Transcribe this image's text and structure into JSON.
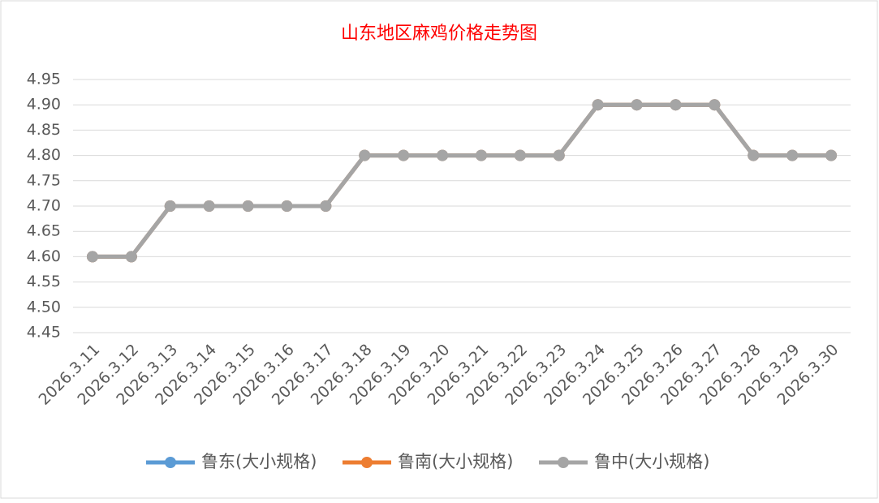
{
  "chart_data": {
    "type": "line",
    "title": "山东地区麻鸡价格走势图",
    "categories": [
      "2026.3.11",
      "2026.3.12",
      "2026.3.13",
      "2026.3.14",
      "2026.3.15",
      "2026.3.16",
      "2026.3.17",
      "2026.3.18",
      "2026.3.19",
      "2026.3.20",
      "2026.3.21",
      "2026.3.22",
      "2026.3.23",
      "2026.3.24",
      "2026.3.25",
      "2026.3.26",
      "2026.3.27",
      "2026.3.28",
      "2026.3.29",
      "2026.3.30"
    ],
    "series": [
      {
        "name": "鲁东(大小规格)",
        "color": "#5b9bd5",
        "values": [
          4.6,
          4.6,
          4.7,
          4.7,
          4.7,
          4.7,
          4.7,
          4.8,
          4.8,
          4.8,
          4.8,
          4.8,
          4.8,
          4.9,
          4.9,
          4.9,
          4.9,
          4.8,
          4.8,
          4.8
        ]
      },
      {
        "name": "鲁南(大小规格)",
        "color": "#ed7d31",
        "values": [
          4.6,
          4.6,
          4.7,
          4.7,
          4.7,
          4.7,
          4.7,
          4.8,
          4.8,
          4.8,
          4.8,
          4.8,
          4.8,
          4.9,
          4.9,
          4.9,
          4.9,
          4.8,
          4.8,
          4.8
        ]
      },
      {
        "name": "鲁中(大小规格)",
        "color": "#a5a5a5",
        "values": [
          4.6,
          4.6,
          4.7,
          4.7,
          4.7,
          4.7,
          4.7,
          4.8,
          4.8,
          4.8,
          4.8,
          4.8,
          4.8,
          4.9,
          4.9,
          4.9,
          4.9,
          4.8,
          4.8,
          4.8
        ]
      }
    ],
    "ylim": [
      4.45,
      4.95
    ],
    "yticks": [
      4.45,
      {
        "value": 4.5,
        "label": "4.50"
      },
      4.55,
      {
        "value": 4.6,
        "label": "4.60"
      },
      4.65,
      {
        "value": 4.7,
        "label": "4.70"
      },
      4.75,
      {
        "value": 4.8,
        "label": "4.80"
      },
      4.85,
      {
        "value": 4.9,
        "label": "4.90"
      },
      4.95
    ],
    "grid": true,
    "legend": "bottom"
  }
}
